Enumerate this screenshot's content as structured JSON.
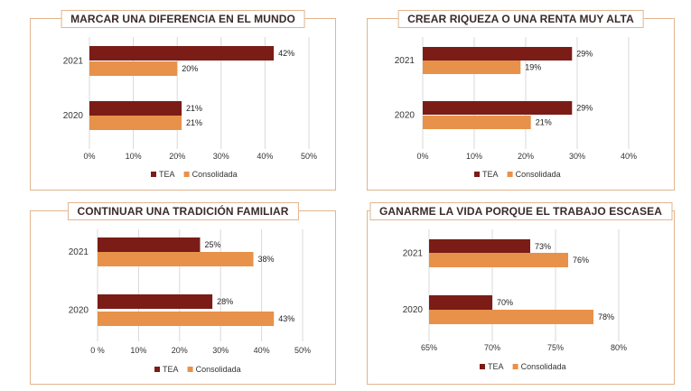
{
  "colors": {
    "tea": "#7b1c16",
    "consolidada": "#e8914a",
    "grid": "#d9d9d9",
    "border": "#e2b58f"
  },
  "chart_data": [
    {
      "type": "bar",
      "title": "MARCAR UNA DIFERENCIA EN EL MUNDO",
      "categories": [
        "2021",
        "2020"
      ],
      "series": [
        {
          "name": "TEA",
          "values": [
            42,
            21
          ]
        },
        {
          "name": "Consolidada",
          "values": [
            20,
            21
          ]
        }
      ],
      "xlim": [
        0,
        50
      ],
      "ticks": [
        0,
        10,
        20,
        30,
        40,
        50
      ],
      "tick_labels": [
        "0%",
        "10%",
        "20%",
        "30%",
        "40%",
        "50%"
      ],
      "grid": true,
      "legend": "bottom"
    },
    {
      "type": "bar",
      "title": "CREAR RIQUEZA O UNA RENTA MUY ALTA",
      "categories": [
        "2021",
        "2020"
      ],
      "series": [
        {
          "name": "TEA",
          "values": [
            29,
            29
          ]
        },
        {
          "name": "Consolidada",
          "values": [
            19,
            21
          ]
        }
      ],
      "xlim": [
        0,
        40
      ],
      "ticks": [
        0,
        10,
        20,
        30,
        40
      ],
      "tick_labels": [
        "0%",
        "10%",
        "20%",
        "30%",
        "40%"
      ],
      "grid": true,
      "legend": "bottom"
    },
    {
      "type": "bar",
      "title": "CONTINUAR UNA TRADICIÓN FAMILIAR",
      "categories": [
        "2021",
        "2020"
      ],
      "series": [
        {
          "name": "TEA",
          "values": [
            25,
            28
          ]
        },
        {
          "name": "Consolidada",
          "values": [
            38,
            43
          ]
        }
      ],
      "xlim": [
        0,
        50
      ],
      "ticks": [
        0,
        10,
        20,
        30,
        40,
        50
      ],
      "tick_labels": [
        "0 %",
        "10%",
        "20%",
        "30%",
        "40%",
        "50%"
      ],
      "grid": true,
      "legend": "bottom"
    },
    {
      "type": "bar",
      "title": "GANARME LA VIDA PORQUE EL TRABAJO ESCASEA",
      "categories": [
        "2021",
        "2020"
      ],
      "series": [
        {
          "name": "TEA",
          "values": [
            73,
            70
          ]
        },
        {
          "name": "Consolidada",
          "values": [
            76,
            78
          ]
        }
      ],
      "xlim": [
        65,
        80
      ],
      "ticks": [
        65,
        70,
        75,
        80
      ],
      "tick_labels": [
        "65%",
        "70%",
        "75%",
        "80%"
      ],
      "grid": true,
      "legend": "bottom"
    }
  ]
}
